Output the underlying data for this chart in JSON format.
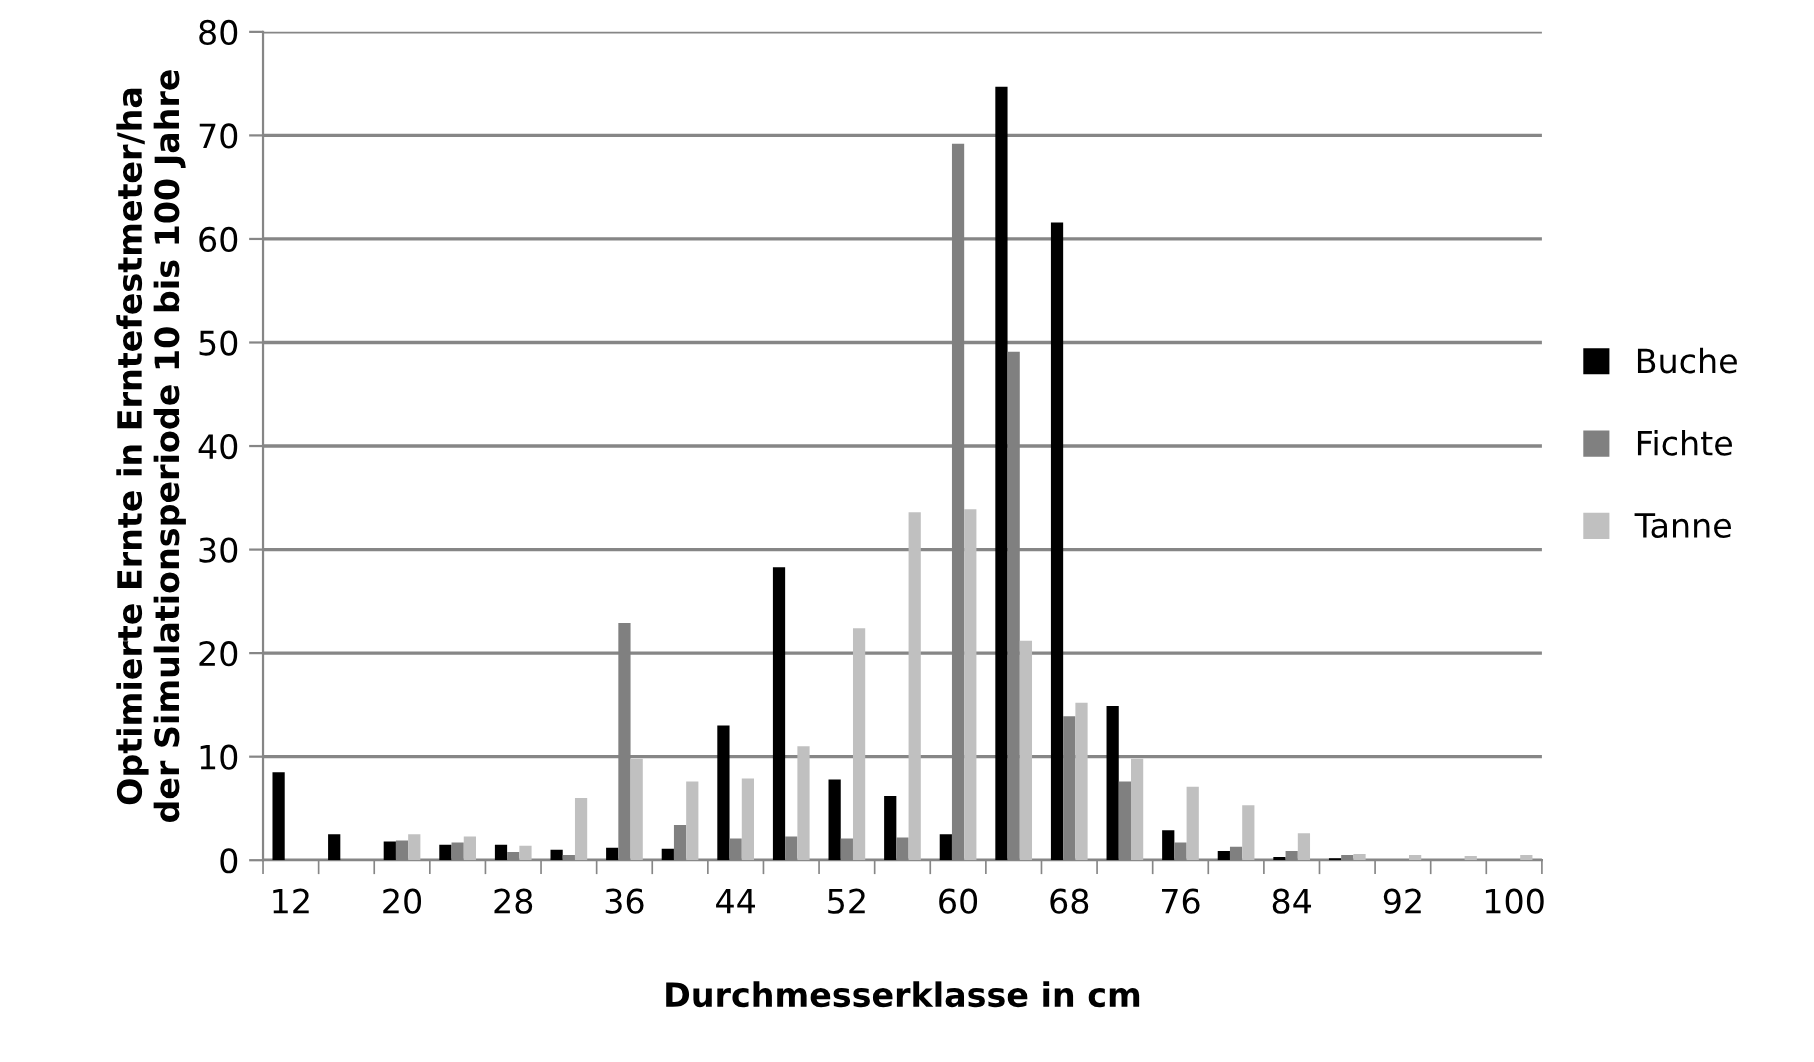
{
  "chart_data": {
    "type": "bar",
    "xlabel": "Durchmesserklasse in cm",
    "ylabel": "Optimierte Ernte in Erntefestmeter/ha\nder Simulationsperiode 10 bis 100 Jahre",
    "categories": [
      "12",
      null,
      "20",
      null,
      "28",
      null,
      "36",
      null,
      "44",
      null,
      "52",
      null,
      "60",
      null,
      "68",
      null,
      "76",
      null,
      "84",
      null,
      "92",
      null,
      "100"
    ],
    "series": [
      {
        "name": "Buche",
        "color": "#000000",
        "values": [
          8.5,
          2.5,
          1.8,
          1.5,
          1.5,
          1.0,
          1.2,
          1.1,
          13.0,
          28.3,
          7.8,
          6.2,
          2.5,
          74.7,
          61.6,
          14.9,
          2.9,
          0.9,
          0.3,
          0.2,
          0,
          0,
          0
        ]
      },
      {
        "name": "Fichte",
        "color": "#808080",
        "values": [
          0,
          0,
          1.9,
          1.7,
          0.8,
          0.5,
          22.9,
          3.4,
          2.1,
          2.3,
          2.1,
          2.2,
          69.2,
          49.1,
          13.9,
          7.6,
          1.7,
          1.3,
          0.9,
          0.5,
          0,
          0,
          0
        ]
      },
      {
        "name": "Tanne",
        "color": "#c0c0c0",
        "values": [
          0,
          0,
          2.5,
          2.3,
          1.4,
          6.0,
          9.8,
          7.6,
          7.9,
          11.0,
          22.4,
          33.6,
          33.9,
          21.2,
          15.2,
          9.8,
          7.1,
          5.3,
          2.6,
          0.6,
          0.5,
          0.4,
          0.5
        ]
      }
    ],
    "ylim": [
      0,
      80
    ],
    "yticks": [
      0,
      10,
      20,
      30,
      40,
      50,
      60,
      70,
      80
    ],
    "grid": "y",
    "legend": "right"
  }
}
